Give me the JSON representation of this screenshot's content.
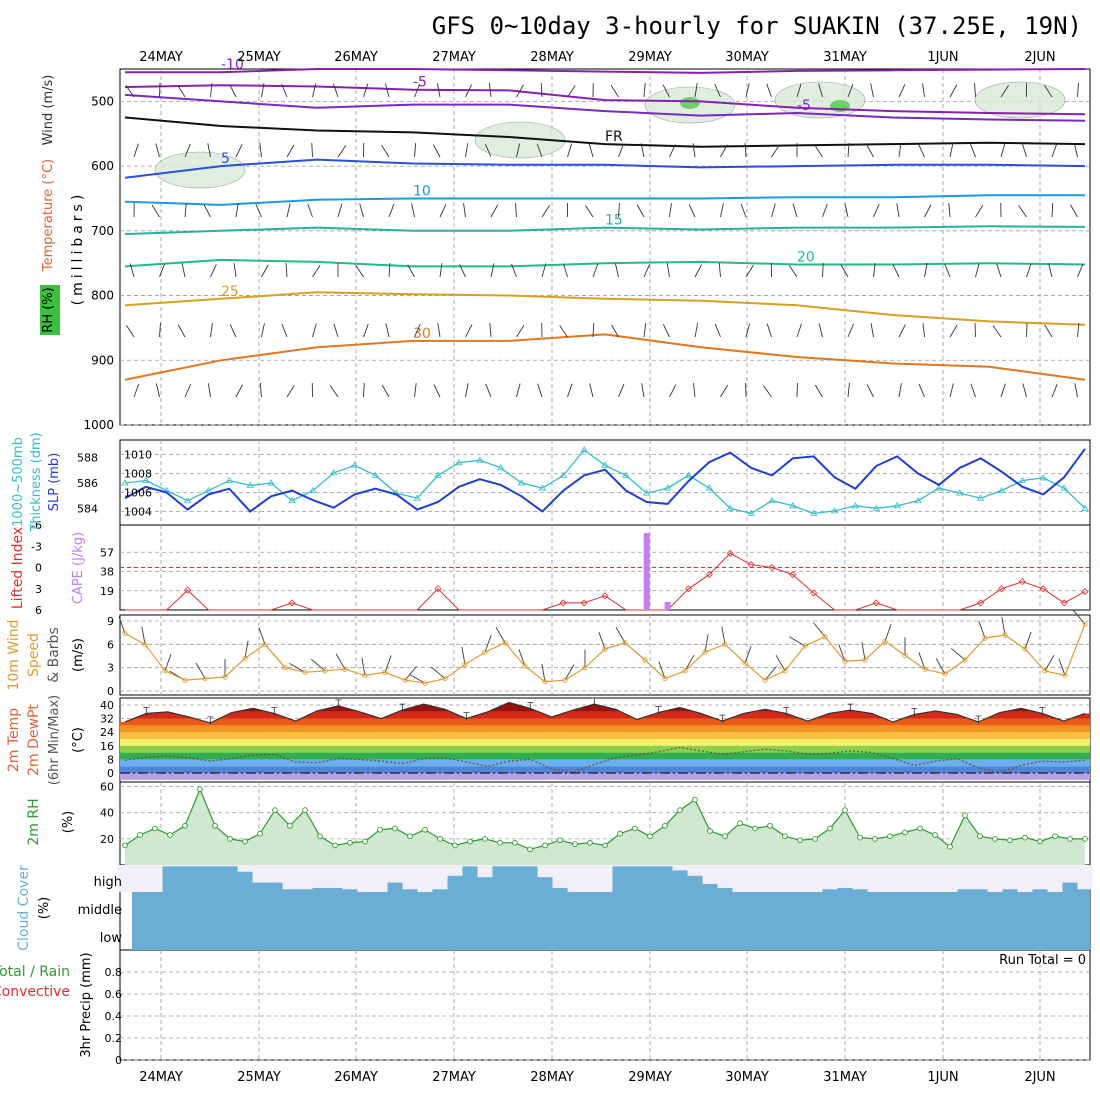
{
  "title": "GFS 0~10day 3-hourly for SUAKIN (37.25E, 19N)",
  "dates": [
    "24MAY",
    "25MAY",
    "26MAY",
    "27MAY",
    "28MAY",
    "29MAY",
    "30MAY",
    "31MAY",
    "1JUN",
    "2JUN"
  ],
  "colors": {
    "frame": "#000000",
    "grid": "#9a9a9a",
    "slp": "#1f3fd0",
    "thickness": "#33bccc",
    "lifted": "#dd3030",
    "cape": "#c77cf0",
    "wind_speed": "#e09a30",
    "barb": "#3a3a3a",
    "rh_line": "#2f9a2f",
    "rh_fill": "#cfe8cf",
    "cloud": "#6aaed6",
    "clear": "#f3eff8"
  },
  "labels": {
    "upper_axis": "(millibars)",
    "upper_wind": "Wind (m/s)",
    "upper_temp": "Temperature (°C)",
    "upper_rh": "RH (%)",
    "slp_left_a": "1000~500mb",
    "slp_left_b": "Thickness (dm)",
    "slp_right": "SLP (mb)",
    "li_a": "Lifted Index",
    "li_b": "CAPE (J/kg)",
    "wind_a": "10m Wind",
    "wind_b": "Speed",
    "wind_c": "& Barbs",
    "wind_unit": "(m/s)",
    "temp_a": "2m Temp",
    "temp_b": "2m DewPt",
    "temp_c": "(6hr Min/Max)",
    "temp_unit": "(°C)",
    "rh_a": "2m RH",
    "rh_unit": "(%)",
    "cloud_a": "Cloud Cover",
    "cloud_unit": "(%)",
    "precip_a": "Total / Rain",
    "precip_b": "Convective",
    "precip_c": "3hr Precip (mm)",
    "run_total": "Run Total = 0"
  },
  "panels": {
    "upper": {
      "levels": [
        500,
        600,
        700,
        800,
        900,
        1000
      ],
      "contours": [
        {
          "label": "-10",
          "color": "#8a1fb0",
          "values": [
            455,
            455,
            450,
            450,
            452,
            454,
            456,
            453,
            452,
            451,
            450
          ]
        },
        {
          "label": "-5",
          "color": "#8a1fb0",
          "values": [
            478,
            475,
            477,
            482,
            483,
            498,
            500,
            510,
            515,
            518,
            520
          ]
        },
        {
          "label": "FR",
          "color": "#111111",
          "values": [
            525,
            538,
            545,
            548,
            555,
            566,
            570,
            568,
            566,
            564,
            566
          ]
        },
        {
          "label": "-5",
          "color": "#7a2ac0",
          "values": [
            490,
            500,
            510,
            505,
            505,
            515,
            522,
            518,
            525,
            528,
            530
          ]
        },
        {
          "label": "5",
          "color": "#2a4fd8",
          "values": [
            618,
            600,
            590,
            596,
            598,
            598,
            602,
            600,
            598,
            598,
            600
          ]
        },
        {
          "label": "10",
          "color": "#1b9adf",
          "values": [
            655,
            660,
            652,
            650,
            650,
            650,
            650,
            648,
            648,
            645,
            645
          ]
        },
        {
          "label": "15",
          "color": "#2ab0a0",
          "values": [
            705,
            700,
            695,
            700,
            700,
            695,
            698,
            695,
            695,
            693,
            694
          ]
        },
        {
          "label": "20",
          "color": "#22bb88",
          "values": [
            755,
            745,
            748,
            755,
            755,
            750,
            748,
            752,
            752,
            750,
            752
          ]
        },
        {
          "label": "25",
          "color": "#d8a020",
          "values": [
            815,
            805,
            795,
            798,
            800,
            805,
            808,
            815,
            830,
            840,
            845
          ]
        },
        {
          "label": "30",
          "color": "#e07820",
          "values": [
            930,
            900,
            880,
            870,
            870,
            860,
            880,
            895,
            905,
            910,
            930
          ]
        }
      ]
    },
    "slp_thickness": {
      "thickness_ticks": [
        584,
        586,
        588
      ],
      "slp_ticks": [
        1004,
        1006,
        1008,
        1010
      ],
      "slp": [
        1005.4,
        1006.6,
        1006.0,
        1004.2,
        1005.8,
        1006.4,
        1004.0,
        1005.6,
        1006.2,
        1005.2,
        1004.4,
        1005.8,
        1006.4,
        1005.8,
        1004.2,
        1005.0,
        1006.6,
        1007.4,
        1006.8,
        1005.6,
        1004.0,
        1006.2,
        1007.8,
        1008.4,
        1006.2,
        1005.0,
        1004.8,
        1007.2,
        1009.2,
        1010.2,
        1008.6,
        1007.8,
        1009.6,
        1009.8,
        1007.6,
        1006.4,
        1008.8,
        1009.8,
        1008.0,
        1006.8,
        1008.6,
        1009.6,
        1008.2,
        1006.6,
        1005.8,
        1007.6,
        1010.6
      ],
      "thickness": [
        586.0,
        586.2,
        585.4,
        584.6,
        585.4,
        586.2,
        585.8,
        586.0,
        584.6,
        585.4,
        586.8,
        587.4,
        586.6,
        585.2,
        584.8,
        586.6,
        587.6,
        587.8,
        587.2,
        586.0,
        585.6,
        586.6,
        588.6,
        587.4,
        586.6,
        585.2,
        585.6,
        586.6,
        585.6,
        584.0,
        583.6,
        584.6,
        584.2,
        583.6,
        583.8,
        584.2,
        584.0,
        584.2,
        584.6,
        585.6,
        585.2,
        584.8,
        585.4,
        586.2,
        586.4,
        585.6,
        584.0
      ]
    },
    "lifted_cape": {
      "li_ticks": [
        6,
        3,
        0,
        -3,
        -6
      ],
      "cape_ticks": [
        19,
        38,
        57
      ],
      "lifted_index": [
        6.0,
        6.0,
        6.0,
        3.2,
        6.0,
        6.0,
        6.0,
        6.0,
        5.0,
        6.0,
        6.0,
        6.0,
        6.0,
        6.0,
        6.0,
        3.0,
        6.0,
        6.0,
        6.0,
        6.0,
        6.0,
        5.0,
        5.0,
        4.0,
        6.0,
        6.0,
        6.0,
        3.0,
        1.0,
        -2.0,
        -0.4,
        0.0,
        1.0,
        3.6,
        6.0,
        6.0,
        5.0,
        6.0,
        6.0,
        6.0,
        6.0,
        5.0,
        3.0,
        2.0,
        3.0,
        5.0,
        3.4
      ],
      "cape": [
        {
          "x": 25.4,
          "value": 76
        },
        {
          "x": 26.4,
          "value": 8
        }
      ]
    },
    "wind": {
      "ticks": [
        0,
        3,
        6,
        9
      ],
      "speed": [
        7.4,
        6.0,
        2.6,
        1.4,
        1.6,
        1.8,
        4.2,
        6.0,
        3.0,
        2.4,
        2.6,
        2.8,
        2.0,
        2.4,
        1.4,
        1.0,
        1.6,
        3.4,
        5.0,
        6.2,
        3.2,
        1.2,
        1.4,
        3.0,
        5.4,
        6.2,
        4.0,
        1.6,
        2.6,
        5.0,
        6.0,
        3.6,
        1.4,
        2.6,
        5.8,
        7.0,
        3.8,
        4.0,
        6.4,
        4.6,
        2.8,
        2.2,
        4.0,
        6.8,
        7.2,
        5.4,
        2.6,
        2.0,
        8.6
      ],
      "direction": [
        340,
        350,
        20,
        300,
        330,
        0,
        10,
        340,
        320,
        300,
        310,
        330,
        350,
        20,
        40,
        300,
        310,
        350,
        20,
        330,
        340,
        350,
        30,
        0,
        340,
        330,
        310,
        340,
        30,
        10,
        350,
        20,
        40,
        330,
        300,
        320,
        340,
        350,
        20,
        0,
        340,
        330,
        310,
        340,
        350,
        20,
        30,
        340,
        320
      ]
    },
    "temp": {
      "ticks": [
        0,
        8,
        16,
        24,
        32,
        40
      ],
      "max": [
        30.0,
        35.0,
        36.0,
        33.0,
        29.5,
        35.5,
        38.0,
        35.0,
        30.5,
        36.5,
        39.5,
        36.0,
        32.0,
        37.0,
        40.5,
        37.5,
        32.0,
        36.0,
        41.5,
        38.0,
        33.0,
        37.0,
        40.5,
        37.5,
        31.5,
        35.5,
        38.5,
        35.0,
        30.5,
        35.0,
        37.5,
        35.0,
        30.5,
        35.0,
        37.0,
        35.0,
        30.0,
        34.5,
        36.5,
        34.5,
        30.0,
        35.5,
        38.0,
        35.0,
        30.5,
        35.0
      ],
      "dew": [
        7.5,
        9.5,
        10.0,
        9.0,
        7.0,
        8.5,
        10.5,
        11.0,
        6.5,
        6.0,
        8.5,
        8.0,
        7.0,
        5.5,
        8.5,
        9.0,
        6.5,
        4.0,
        7.0,
        8.0,
        2.5,
        0.5,
        5.0,
        9.0,
        10.5,
        12.5,
        15.0,
        13.0,
        11.0,
        12.5,
        14.0,
        13.0,
        11.0,
        11.5,
        13.0,
        12.0,
        8.5,
        4.5,
        7.0,
        8.5,
        3.0,
        0.5,
        4.5,
        7.0,
        6.5,
        7.5
      ]
    },
    "rh": {
      "ticks": [
        20,
        40,
        60
      ],
      "values": [
        15,
        23,
        28,
        23,
        30,
        58,
        30,
        20,
        18,
        24,
        42,
        30,
        42,
        22,
        15,
        17,
        18,
        27,
        28,
        22,
        27,
        20,
        15,
        18,
        20,
        17,
        17,
        12,
        15,
        19,
        16,
        17,
        15,
        24,
        28,
        22,
        30,
        42,
        50,
        26,
        22,
        32,
        28,
        30,
        22,
        19,
        20,
        28,
        42,
        21,
        20,
        22,
        25,
        28,
        23,
        14,
        38,
        22,
        20,
        19,
        21,
        18,
        22,
        20,
        20
      ]
    },
    "cloud": {
      "ticks": [
        "high",
        "middle",
        "low"
      ],
      "high": [
        0.0,
        0.0,
        0.0,
        0.95,
        0.95,
        0.95,
        0.95,
        0.95,
        0.75,
        0.35,
        0.35,
        0.1,
        0.1,
        0.15,
        0.15,
        0.1,
        0.0,
        0.0,
        0.35,
        0.1,
        0.0,
        0.1,
        0.6,
        0.95,
        0.55,
        0.95,
        0.95,
        0.95,
        0.55,
        0.15,
        0.0,
        0.0,
        0.0,
        0.95,
        0.95,
        0.95,
        0.95,
        0.8,
        0.6,
        0.3,
        0.15,
        0.0,
        0.0,
        0.0,
        0.0,
        0.0,
        0.0,
        0.1,
        0.15,
        0.1,
        0.0,
        0.0,
        0.0,
        0.0,
        0.0,
        0.0,
        0.1,
        0.1,
        0.0,
        0.1,
        0.0,
        0.1,
        0.0,
        0.35,
        0.1
      ]
    },
    "precip": {
      "ticks": [
        0,
        0.2,
        0.4,
        0.6,
        0.8
      ],
      "total": 0
    }
  }
}
